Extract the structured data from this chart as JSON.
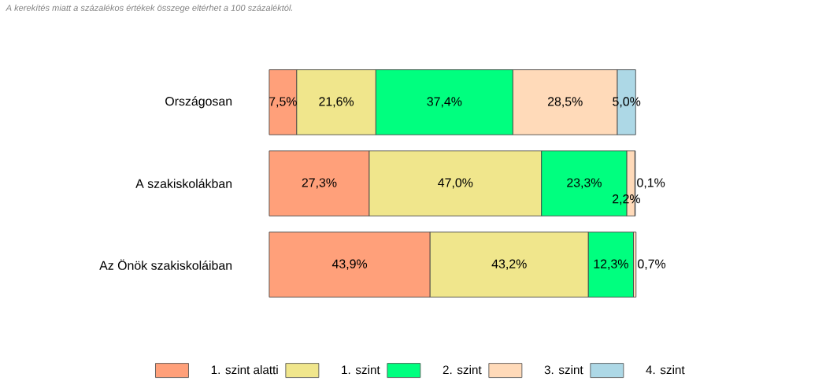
{
  "chart_data": {
    "type": "bar",
    "orientation": "horizontal",
    "stacked": true,
    "annotations": [
      "A kerekítés miatt a  százalékos értékek összege eltérhet a 100 százaléktól."
    ],
    "categories": [
      "Országosan",
      "A szakiskolákban",
      "Az Önök szakiskoláiban"
    ],
    "series": [
      {
        "name": "1. szint alatti",
        "color": "#ffa07a",
        "values": [
          7.5,
          27.3,
          43.9
        ],
        "value_labels": [
          "7,5%",
          "27,3%",
          "43,9%"
        ]
      },
      {
        "name": "1. szint",
        "color": "#f0e68c",
        "values": [
          21.6,
          47.0,
          43.2
        ],
        "value_labels": [
          "21,6%",
          "47,0%",
          "43,2%"
        ]
      },
      {
        "name": "2. szint",
        "color": "#00ff7f",
        "values": [
          37.4,
          23.3,
          12.3
        ],
        "value_labels": [
          "37,4%",
          "23,3%",
          "12,3%"
        ]
      },
      {
        "name": "3. szint",
        "color": "#ffdab9",
        "values": [
          28.5,
          2.2,
          0.7
        ],
        "value_labels": [
          "28,5%",
          "2,2%",
          "0,7%"
        ]
      },
      {
        "name": "4. szint",
        "color": "#add8e6",
        "values": [
          5.0,
          0.1,
          null
        ],
        "value_labels": [
          "5,0%",
          "0,1%",
          null
        ]
      }
    ],
    "legend": "bottom"
  }
}
